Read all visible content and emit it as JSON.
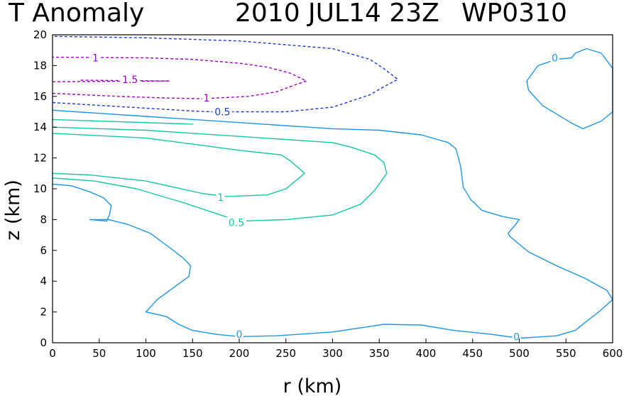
{
  "header": {
    "title": "T Anomaly",
    "datetime": "2010 JUL14 23Z",
    "storm_id": "WP0310"
  },
  "chart_data": {
    "type": "contour",
    "title": "T Anomaly",
    "xlabel": "r (km)",
    "ylabel": "z (km)",
    "xlim": [
      0,
      600
    ],
    "ylim": [
      0,
      20
    ],
    "xticks": [
      "0",
      "50",
      "100",
      "150",
      "200",
      "250",
      "300",
      "350",
      "400",
      "450",
      "500",
      "550",
      "600"
    ],
    "yticks": [
      "0",
      "2",
      "4",
      "6",
      "8",
      "10",
      "12",
      "14",
      "16",
      "18",
      "20"
    ],
    "contours": [
      {
        "level": 0,
        "color": "#1e96e6",
        "dashed": false,
        "paths": [
          [
            [
              0,
              10.3
            ],
            [
              20,
              10.2
            ],
            [
              40,
              9.8
            ],
            [
              55,
              9.4
            ],
            [
              63,
              8.9
            ],
            [
              61,
              8.3
            ],
            [
              58,
              7.9
            ],
            [
              40,
              8.0
            ],
            [
              60,
              8.0
            ],
            [
              80,
              7.7
            ],
            [
              105,
              7.1
            ],
            [
              125,
              6.2
            ],
            [
              140,
              5.5
            ],
            [
              148,
              5.0
            ],
            [
              146,
              4.3
            ],
            [
              130,
              3.6
            ],
            [
              112,
              2.8
            ],
            [
              100,
              2.0
            ],
            [
              108,
              1.9
            ],
            [
              122,
              1.7
            ],
            [
              135,
              1.2
            ],
            [
              150,
              0.8
            ],
            [
              175,
              0.55
            ],
            [
              200,
              0.4
            ],
            [
              240,
              0.45
            ],
            [
              300,
              0.7
            ],
            [
              355,
              1.2
            ],
            [
              395,
              1.15
            ],
            [
              430,
              0.8
            ],
            [
              470,
              0.55
            ],
            [
              500,
              0.3
            ],
            [
              540,
              0.45
            ],
            [
              560,
              0.8
            ],
            [
              570,
              1.3
            ],
            [
              585,
              2.0
            ],
            [
              600,
              2.8
            ],
            [
              594,
              3.4
            ],
            [
              570,
              4.2
            ],
            [
              540,
              5.0
            ],
            [
              510,
              5.9
            ],
            [
              490,
              6.9
            ],
            [
              488,
              7.1
            ],
            [
              495,
              7.6
            ],
            [
              500,
              8.0
            ],
            [
              482,
              8.2
            ],
            [
              460,
              8.6
            ],
            [
              448,
              9.3
            ],
            [
              440,
              10.1
            ],
            [
              437,
              11.5
            ],
            [
              432,
              12.6
            ],
            [
              424,
              13.0
            ],
            [
              395,
              13.5
            ],
            [
              350,
              13.8
            ],
            [
              300,
              13.9
            ],
            [
              200,
              14.3
            ],
            [
              100,
              14.7
            ],
            [
              0,
              15.1
            ]
          ],
          [
            [
              556,
              18.5
            ],
            [
              540,
              18.4
            ],
            [
              520,
              18.0
            ],
            [
              508,
              17.0
            ],
            [
              510,
              16.4
            ],
            [
              525,
              15.4
            ],
            [
              555,
              14.3
            ],
            [
              568,
              13.9
            ],
            [
              588,
              14.4
            ],
            [
              600,
              15.0
            ],
            [
              600,
              17.8
            ],
            [
              588,
              18.8
            ],
            [
              572,
              19.1
            ],
            [
              560,
              18.8
            ],
            [
              556,
              18.5
            ]
          ]
        ]
      },
      {
        "level": 0.5,
        "color": "#14c8a0",
        "dashed": false,
        "paths": [
          [
            [
              0,
              10.7
            ],
            [
              45,
              10.5
            ],
            [
              90,
              10.0
            ],
            [
              140,
              9.1
            ],
            [
              180,
              8.3
            ],
            [
              200,
              7.9
            ],
            [
              250,
              8.0
            ],
            [
              300,
              8.3
            ],
            [
              330,
              9.0
            ],
            [
              345,
              9.9
            ],
            [
              358,
              11.0
            ],
            [
              355,
              11.7
            ],
            [
              345,
              12.2
            ],
            [
              320,
              12.7
            ],
            [
              300,
              13.0
            ],
            [
              200,
              13.4
            ],
            [
              100,
              13.8
            ],
            [
              0,
              14.0
            ]
          ],
          [
            [
              0,
              14.5
            ],
            [
              150,
              14.2
            ],
            [
              0,
              14.5
            ]
          ]
        ]
      },
      {
        "level": 1,
        "color": "#14c8a0",
        "dashed": false,
        "paths": [
          [
            [
              0,
              11.0
            ],
            [
              40,
              10.9
            ],
            [
              100,
              10.5
            ],
            [
              160,
              9.7
            ],
            [
              185,
              9.5
            ],
            [
              230,
              9.6
            ],
            [
              250,
              10.0
            ],
            [
              270,
              11.0
            ],
            [
              255,
              11.8
            ],
            [
              245,
              12.2
            ],
            [
              200,
              12.5
            ],
            [
              150,
              12.9
            ],
            [
              100,
              13.3
            ],
            [
              0,
              13.6
            ]
          ]
        ]
      },
      {
        "level": 0.5,
        "color": "#1e3cd2",
        "dashed": true,
        "paths": [
          [
            [
              0,
              15.6
            ],
            [
              150,
              15.05
            ],
            [
              170,
              15.0
            ],
            [
              250,
              15.0
            ],
            [
              300,
              15.3
            ],
            [
              340,
              16.1
            ],
            [
              357,
              16.7
            ],
            [
              370,
              17.1
            ],
            [
              355,
              17.8
            ],
            [
              340,
              18.4
            ],
            [
              300,
              19.1
            ],
            [
              200,
              19.6
            ],
            [
              100,
              19.8
            ],
            [
              0,
              19.9
            ]
          ]
        ]
      },
      {
        "level": 1,
        "color": "#a000c8",
        "dashed": true,
        "paths": [
          [
            [
              0,
              16.2
            ],
            [
              70,
              16.0
            ],
            [
              120,
              15.9
            ],
            [
              160,
              15.85
            ],
            [
              210,
              16.0
            ],
            [
              240,
              16.3
            ],
            [
              260,
              16.75
            ],
            [
              272,
              17.0
            ],
            [
              255,
              17.5
            ],
            [
              230,
              17.9
            ],
            [
              200,
              18.15
            ],
            [
              150,
              18.4
            ],
            [
              100,
              18.5
            ],
            [
              0,
              18.55
            ]
          ]
        ]
      },
      {
        "level": 1.5,
        "color": "#a000c8",
        "dashed": true,
        "paths": [
          [
            [
              0,
              16.95
            ],
            [
              125,
              17.0
            ]
          ],
          [
            [
              30,
              17.05
            ],
            [
              125,
              17.0
            ]
          ]
        ]
      }
    ],
    "contour_labels": [
      {
        "text": "0",
        "r": 538,
        "z": 18.5,
        "color": "#1e96e6"
      },
      {
        "text": "0",
        "r": 200,
        "z": 0.55,
        "color": "#1e96e6"
      },
      {
        "text": "0",
        "r": 497,
        "z": 0.4,
        "color": "#1e96e6"
      },
      {
        "text": "0.5",
        "r": 197,
        "z": 7.8,
        "color": "#14c8a0"
      },
      {
        "text": "1",
        "r": 180,
        "z": 9.45,
        "color": "#14c8a0"
      },
      {
        "text": "0.5",
        "r": 182,
        "z": 15.0,
        "color": "#1e3cd2"
      },
      {
        "text": "1",
        "r": 46,
        "z": 18.5,
        "color": "#a000c8"
      },
      {
        "text": "1.5",
        "r": 83,
        "z": 17.1,
        "color": "#a000c8"
      },
      {
        "text": "1",
        "r": 165,
        "z": 15.9,
        "color": "#a000c8"
      }
    ]
  }
}
